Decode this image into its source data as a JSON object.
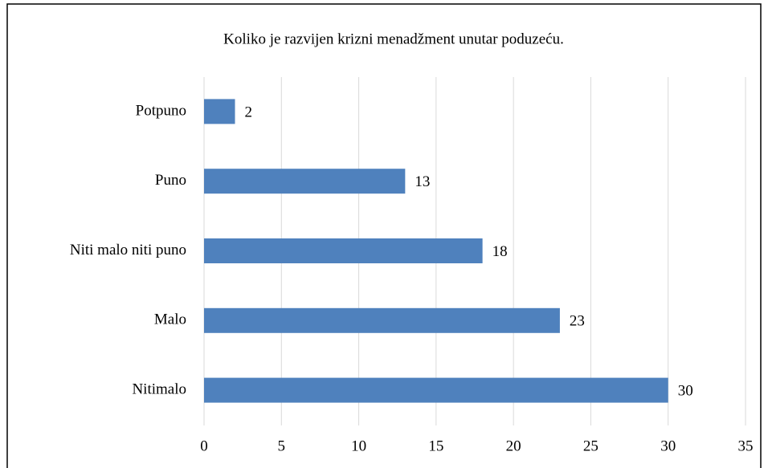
{
  "chart_data": {
    "type": "bar",
    "orientation": "horizontal",
    "title": "Koliko je razvijen krizni menadžment unutar poduzeću.",
    "categories": [
      "Potpuno",
      "Puno",
      "Niti malo niti puno",
      "Malo",
      "Nitimalo"
    ],
    "values": [
      2,
      13,
      18,
      23,
      30
    ],
    "color": "#4f81bd",
    "xlim": [
      0,
      35
    ],
    "xticks": [
      0,
      5,
      10,
      15,
      20,
      25,
      30,
      35
    ],
    "grid": true
  }
}
